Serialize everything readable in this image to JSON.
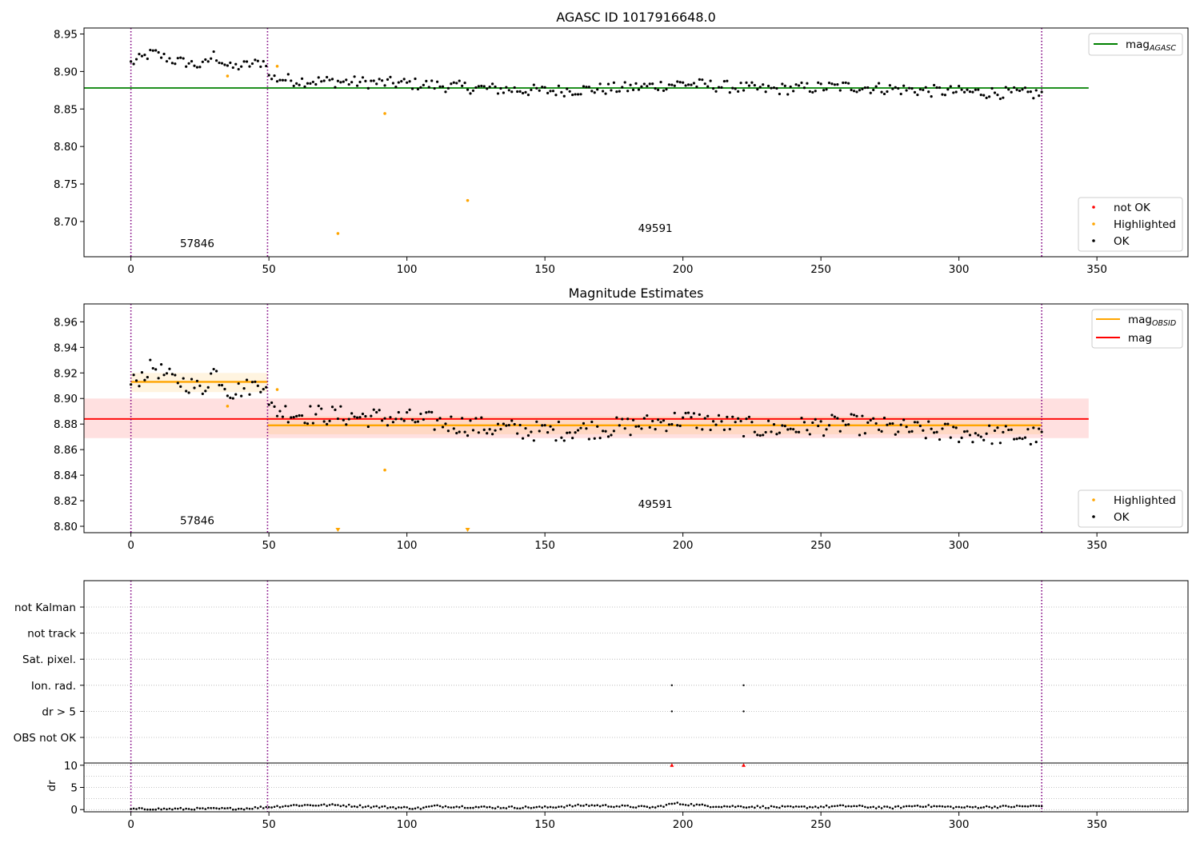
{
  "chart_data": [
    {
      "type": "scatter",
      "title": "AGASC ID 1017916648.0",
      "xlim": [
        -17,
        383
      ],
      "ylim": [
        8.653,
        8.958
      ],
      "xticks": [
        0,
        50,
        100,
        150,
        200,
        250,
        300,
        350
      ],
      "yticks": [
        8.7,
        8.75,
        8.8,
        8.85,
        8.9,
        8.95
      ],
      "ytick_labels": [
        "8.70",
        "8.75",
        "8.80",
        "8.85",
        "8.90",
        "8.95"
      ],
      "obsid_boundaries": [
        0,
        49.5,
        330
      ],
      "obsid_labels": [
        {
          "text": "57846",
          "x": 24,
          "y": 8.666
        },
        {
          "text": "49591",
          "x": 190,
          "y": 8.686
        }
      ],
      "lines": [
        {
          "name": "mag_AGASC",
          "color": "#008000",
          "x": [
            -17,
            347
          ],
          "y": [
            8.878,
            8.878
          ]
        }
      ],
      "legend_top": {
        "position": "top-right",
        "entries": [
          {
            "label": "mag",
            "sub": "AGASC",
            "color": "#008000"
          }
        ]
      },
      "legend_bottom": {
        "position": "bottom-right",
        "entries": [
          {
            "label": "not OK",
            "color": "#ff0000"
          },
          {
            "label": "Highlighted",
            "color": "#ffa500"
          },
          {
            "label": "OK",
            "color": "#000000"
          }
        ]
      },
      "highlighted": [
        {
          "x": 35,
          "y": 8.894
        },
        {
          "x": 53,
          "y": 8.907
        },
        {
          "x": 75,
          "y": 8.684
        },
        {
          "x": 92,
          "y": 8.844
        },
        {
          "x": 122,
          "y": 8.728
        }
      ],
      "ok_series": {
        "color": "#000000",
        "segments": [
          {
            "x0": 0,
            "x1": 49,
            "knots": [
              [
                0,
                8.911
              ],
              [
                8,
                8.925
              ],
              [
                15,
                8.915
              ],
              [
                20,
                8.912
              ],
              [
                26,
                8.907
              ],
              [
                30,
                8.922
              ],
              [
                36,
                8.905
              ],
              [
                44,
                8.91
              ],
              [
                49,
                8.913
              ]
            ],
            "noise": 0.007
          },
          {
            "x0": 50,
            "x1": 330,
            "knots": [
              [
                50,
                8.892
              ],
              [
                60,
                8.888
              ],
              [
                80,
                8.886
              ],
              [
                100,
                8.884
              ],
              [
                130,
                8.877
              ],
              [
                150,
                8.874
              ],
              [
                180,
                8.878
              ],
              [
                200,
                8.884
              ],
              [
                230,
                8.876
              ],
              [
                260,
                8.88
              ],
              [
                290,
                8.874
              ],
              [
                330,
                8.87
              ]
            ],
            "noise": 0.008
          }
        ]
      }
    },
    {
      "type": "scatter",
      "title": "Magnitude Estimates",
      "xlim": [
        -17,
        383
      ],
      "ylim": [
        8.795,
        8.974
      ],
      "xticks": [
        0,
        50,
        100,
        150,
        200,
        250,
        300,
        350
      ],
      "yticks": [
        8.8,
        8.82,
        8.84,
        8.86,
        8.88,
        8.9,
        8.92,
        8.94,
        8.96
      ],
      "ytick_labels": [
        "8.80",
        "8.82",
        "8.84",
        "8.86",
        "8.88",
        "8.90",
        "8.92",
        "8.94",
        "8.96"
      ],
      "obsid_boundaries": [
        0,
        49.5,
        330
      ],
      "obsid_labels": [
        {
          "text": "57846",
          "x": 24,
          "y": 8.8015
        },
        {
          "text": "49591",
          "x": 190,
          "y": 8.8145
        }
      ],
      "bands": [
        {
          "color": "#ff0000",
          "opacity": 0.12,
          "x": [
            -17,
            347
          ],
          "y": [
            8.869,
            8.9
          ]
        },
        {
          "color": "#ffa500",
          "opacity": 0.12,
          "x": [
            0,
            49.5
          ],
          "y": [
            8.905,
            8.92
          ]
        },
        {
          "color": "#ffa500",
          "opacity": 0.12,
          "x": [
            49.5,
            330
          ],
          "y": [
            8.872,
            8.886
          ]
        }
      ],
      "lines": [
        {
          "name": "mag",
          "color": "#ff0000",
          "x": [
            -17,
            347
          ],
          "y": [
            8.884,
            8.884
          ]
        },
        {
          "name": "mag_OBSID",
          "color": "#ffa500",
          "x": [
            0,
            49.5
          ],
          "y": [
            8.913,
            8.913
          ]
        },
        {
          "name": "mag_OBSID",
          "color": "#ffa500",
          "x": [
            49.5,
            330
          ],
          "y": [
            8.879,
            8.879
          ]
        }
      ],
      "legend_top": {
        "position": "top-right",
        "entries": [
          {
            "label": "mag",
            "sub": "OBSID",
            "color": "#ffa500"
          },
          {
            "label": "mag",
            "sub": "",
            "color": "#ff0000"
          }
        ]
      },
      "legend_bottom": {
        "position": "bottom-right",
        "entries": [
          {
            "label": "Highlighted",
            "color": "#ffa500"
          },
          {
            "label": "OK",
            "color": "#000000"
          }
        ]
      },
      "highlighted": [
        {
          "x": 35,
          "y": 8.894
        },
        {
          "x": 53,
          "y": 8.907
        },
        {
          "x": 92,
          "y": 8.844
        }
      ],
      "off_axis": [
        {
          "x": 75
        },
        {
          "x": 122
        }
      ],
      "ok_series": {
        "color": "#000000",
        "segments": [
          {
            "x0": 0,
            "x1": 49,
            "knots": [
              [
                0,
                8.911
              ],
              [
                8,
                8.925
              ],
              [
                15,
                8.915
              ],
              [
                20,
                8.912
              ],
              [
                26,
                8.907
              ],
              [
                30,
                8.922
              ],
              [
                36,
                8.905
              ],
              [
                44,
                8.91
              ],
              [
                49,
                8.913
              ]
            ],
            "noise": 0.007
          },
          {
            "x0": 50,
            "x1": 330,
            "knots": [
              [
                50,
                8.892
              ],
              [
                60,
                8.888
              ],
              [
                80,
                8.886
              ],
              [
                100,
                8.884
              ],
              [
                130,
                8.877
              ],
              [
                150,
                8.874
              ],
              [
                180,
                8.878
              ],
              [
                200,
                8.884
              ],
              [
                230,
                8.876
              ],
              [
                260,
                8.88
              ],
              [
                290,
                8.874
              ],
              [
                330,
                8.87
              ]
            ],
            "noise": 0.008
          }
        ]
      }
    },
    {
      "type": "scatter",
      "title": "",
      "xlim": [
        -17,
        383
      ],
      "categories": [
        "not Kalman",
        "not track",
        "Sat. pixel.",
        "Ion. rad.",
        "dr > 5",
        "OBS not OK"
      ],
      "flags": [
        {
          "category": "Ion. rad.",
          "x": [
            196,
            222
          ]
        },
        {
          "category": "dr > 5",
          "x": [
            196,
            222
          ]
        }
      ],
      "obsid_boundaries": [
        0,
        49.5,
        330
      ]
    },
    {
      "type": "scatter",
      "title": "",
      "ylabel": "dr",
      "xlim": [
        -17,
        383
      ],
      "ylim": [
        -0.5,
        10.5
      ],
      "xticks": [
        0,
        50,
        100,
        150,
        200,
        250,
        300,
        350
      ],
      "yticks": [
        0,
        5,
        10
      ],
      "obsid_boundaries": [
        0,
        49.5,
        330
      ],
      "clipped": [
        {
          "x": 196,
          "y": 10
        },
        {
          "x": 222,
          "y": 10
        }
      ],
      "dr_series": {
        "color": "#000000",
        "knots": [
          [
            0,
            0.1
          ],
          [
            40,
            0.2
          ],
          [
            50,
            0.6
          ],
          [
            60,
            1.0
          ],
          [
            75,
            1.0
          ],
          [
            90,
            0.6
          ],
          [
            105,
            0.3
          ],
          [
            110,
            0.8
          ],
          [
            130,
            0.5
          ],
          [
            150,
            0.5
          ],
          [
            165,
            1.0
          ],
          [
            190,
            0.5
          ],
          [
            197,
            1.4
          ],
          [
            210,
            0.8
          ],
          [
            240,
            0.5
          ],
          [
            260,
            0.8
          ],
          [
            275,
            0.4
          ],
          [
            285,
            0.9
          ],
          [
            300,
            0.5
          ],
          [
            330,
            0.8
          ]
        ],
        "x0": 0,
        "x1": 330,
        "noise": 0.25
      }
    }
  ]
}
